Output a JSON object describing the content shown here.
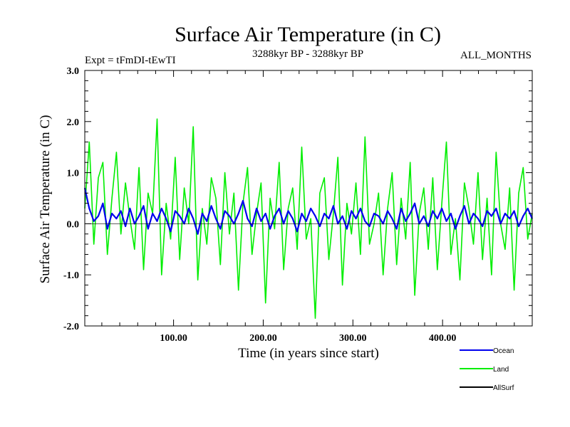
{
  "chart_data": {
    "type": "line",
    "title": "Surface Air Temperature (in C)",
    "subtitle_left": "Expt = tFmDI-tEwTI",
    "subtitle_center": "3288kyr BP - 3288kyr BP",
    "subtitle_right": "ALL_MONTHS",
    "xlabel": "Time (in years since start)",
    "ylabel": "Surface Air Temperature (in C)",
    "xlim": [
      1,
      500
    ],
    "ylim": [
      -2.0,
      3.0
    ],
    "xticks": [
      100,
      200,
      300,
      400
    ],
    "xtick_labels": [
      "100.00",
      "200.00",
      "300.00",
      "400.00"
    ],
    "yticks": [
      -2.0,
      -1.0,
      0.0,
      1.0,
      2.0,
      3.0
    ],
    "ytick_labels": [
      "-2.0",
      "-1.0",
      "0.0",
      "1.0",
      "2.0",
      "3.0"
    ],
    "zero_line": 0.0,
    "legend_position": "bottom-right",
    "series": [
      {
        "name": "Land",
        "color": "#00ee00",
        "note": "annual values, approx. mean 0.05, std 0.55",
        "values": [
          0.3,
          1.6,
          -0.4,
          0.9,
          1.2,
          -0.6,
          0.5,
          1.4,
          -0.2,
          0.8,
          0.1,
          -0.5,
          1.1,
          -0.9,
          0.6,
          0.2,
          2.05,
          -1.0,
          0.4,
          -0.3,
          1.3,
          -0.7,
          0.7,
          0.0,
          1.9,
          -1.1,
          0.3,
          -0.4,
          0.9,
          0.5,
          -0.8,
          1.0,
          -0.2,
          0.6,
          -1.3,
          0.4,
          1.1,
          -0.6,
          0.2,
          0.8,
          -1.55,
          0.5,
          -0.1,
          1.2,
          -0.9,
          0.3,
          0.7,
          -0.5,
          1.5,
          -0.3,
          0.1,
          -1.85,
          0.6,
          0.9,
          -0.7,
          0.2,
          1.3,
          -1.2,
          0.4,
          -0.2,
          0.8,
          -0.6,
          1.7,
          -0.4,
          0.0,
          0.6,
          -1.0,
          0.3,
          1.0,
          -0.8,
          0.5,
          -0.3,
          1.2,
          -1.4,
          0.2,
          0.7,
          -0.5,
          0.9,
          -0.9,
          0.4,
          1.6,
          -0.6,
          0.1,
          -1.1,
          0.8,
          0.3,
          -0.4,
          1.0,
          -0.7,
          0.5,
          -1.0,
          1.4,
          0.0,
          -0.5,
          0.7,
          -1.3,
          0.6,
          1.1,
          -0.3,
          0.2
        ]
      },
      {
        "name": "Ocean",
        "color": "#0000ee",
        "note": "annual values, approx. mean 0.1, std 0.15",
        "values": [
          0.7,
          0.3,
          0.05,
          0.15,
          0.4,
          -0.1,
          0.2,
          0.1,
          0.25,
          -0.05,
          0.3,
          0.0,
          0.15,
          0.35,
          -0.1,
          0.2,
          0.05,
          0.3,
          0.1,
          -0.15,
          0.25,
          0.15,
          0.0,
          0.3,
          0.1,
          -0.2,
          0.2,
          0.05,
          0.35,
          0.1,
          -0.1,
          0.25,
          0.15,
          0.0,
          0.2,
          0.45,
          0.1,
          -0.05,
          0.3,
          0.05,
          0.2,
          -0.1,
          0.15,
          0.3,
          0.0,
          0.25,
          0.1,
          -0.15,
          0.2,
          0.05,
          0.3,
          0.15,
          -0.05,
          0.2,
          0.1,
          0.35,
          0.0,
          0.15,
          -0.1,
          0.25,
          0.1,
          0.3,
          0.05,
          -0.05,
          0.2,
          0.15,
          0.0,
          0.25,
          0.1,
          -0.1,
          0.3,
          0.05,
          0.2,
          0.4,
          0.0,
          0.15,
          -0.05,
          0.25,
          0.1,
          0.3,
          0.05,
          0.2,
          -0.1,
          0.15,
          0.35,
          0.0,
          0.2,
          0.1,
          -0.05,
          0.25,
          0.15,
          0.3,
          0.0,
          0.2,
          0.1,
          0.25,
          -0.05,
          0.15,
          0.3,
          0.1
        ]
      },
      {
        "name": "AllSurf",
        "color": "#000000",
        "values": []
      }
    ]
  }
}
